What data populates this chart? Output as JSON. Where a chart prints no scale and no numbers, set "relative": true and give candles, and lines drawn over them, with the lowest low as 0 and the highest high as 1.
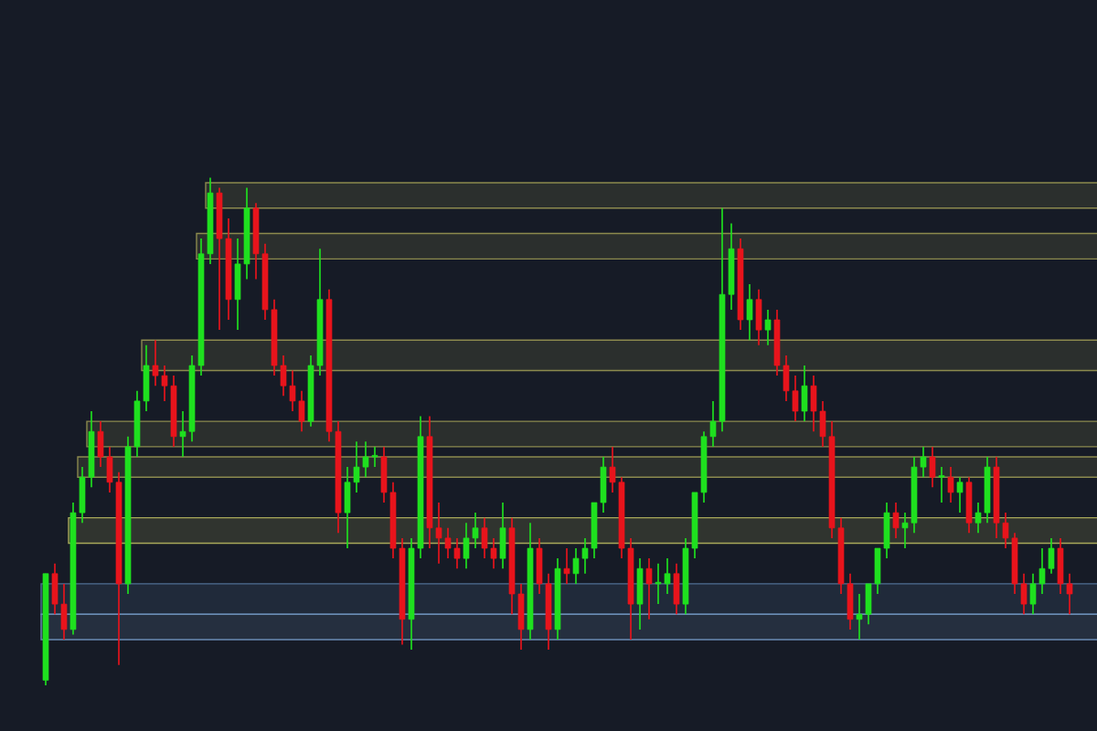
{
  "chart_data": {
    "type": "candlestick",
    "relative": true,
    "categories": [
      null,
      null,
      null,
      null,
      null,
      null,
      null,
      null,
      null,
      null,
      null,
      null,
      null,
      null,
      null,
      null,
      null,
      null,
      null,
      null,
      null,
      null,
      null,
      null,
      null,
      null,
      null,
      null,
      null,
      null,
      null,
      null,
      null,
      null,
      null,
      null,
      null,
      null,
      null,
      null,
      null,
      null,
      null,
      null,
      null,
      null,
      null,
      null,
      null,
      null,
      null,
      null,
      null,
      null,
      null,
      null,
      null,
      null,
      null,
      null,
      null,
      null,
      null,
      null,
      null,
      null,
      null,
      null,
      null,
      null,
      null,
      null,
      null,
      null,
      null,
      null,
      null,
      null,
      null,
      null,
      null,
      null,
      null,
      null,
      null,
      null,
      null,
      null,
      null,
      null,
      null,
      null,
      null,
      null,
      null,
      null,
      null,
      null,
      null,
      null,
      null,
      null,
      null,
      null,
      null,
      null,
      null,
      null,
      null,
      null,
      null,
      null,
      null
    ],
    "ohlc": [
      [
        0.01,
        0.22,
        0.0,
        0.22
      ],
      [
        0.22,
        0.24,
        0.14,
        0.16
      ],
      [
        0.16,
        0.2,
        0.09,
        0.11
      ],
      [
        0.11,
        0.36,
        0.1,
        0.34
      ],
      [
        0.34,
        0.43,
        0.32,
        0.41
      ],
      [
        0.41,
        0.54,
        0.39,
        0.5
      ],
      [
        0.5,
        0.52,
        0.43,
        0.45
      ],
      [
        0.45,
        0.47,
        0.38,
        0.4
      ],
      [
        0.4,
        0.42,
        0.04,
        0.2
      ],
      [
        0.2,
        0.49,
        0.18,
        0.47
      ],
      [
        0.47,
        0.58,
        0.45,
        0.56
      ],
      [
        0.56,
        0.67,
        0.54,
        0.63
      ],
      [
        0.63,
        0.68,
        0.59,
        0.61
      ],
      [
        0.61,
        0.63,
        0.56,
        0.59
      ],
      [
        0.59,
        0.61,
        0.47,
        0.49
      ],
      [
        0.49,
        0.54,
        0.45,
        0.5
      ],
      [
        0.5,
        0.65,
        0.48,
        0.63
      ],
      [
        0.63,
        0.88,
        0.61,
        0.85
      ],
      [
        0.85,
        1.0,
        0.83,
        0.97
      ],
      [
        0.97,
        0.98,
        0.7,
        0.88
      ],
      [
        0.88,
        0.92,
        0.72,
        0.76
      ],
      [
        0.76,
        0.88,
        0.7,
        0.83
      ],
      [
        0.83,
        0.98,
        0.8,
        0.94
      ],
      [
        0.94,
        0.95,
        0.8,
        0.85
      ],
      [
        0.85,
        0.87,
        0.72,
        0.74
      ],
      [
        0.74,
        0.76,
        0.61,
        0.63
      ],
      [
        0.63,
        0.65,
        0.57,
        0.59
      ],
      [
        0.59,
        0.62,
        0.54,
        0.56
      ],
      [
        0.56,
        0.58,
        0.5,
        0.52
      ],
      [
        0.52,
        0.65,
        0.51,
        0.63
      ],
      [
        0.63,
        0.86,
        0.61,
        0.76
      ],
      [
        0.76,
        0.78,
        0.48,
        0.5
      ],
      [
        0.5,
        0.52,
        0.3,
        0.34
      ],
      [
        0.34,
        0.43,
        0.27,
        0.4
      ],
      [
        0.4,
        0.48,
        0.38,
        0.43
      ],
      [
        0.43,
        0.48,
        0.41,
        0.45
      ],
      [
        0.45,
        0.47,
        0.43,
        0.45
      ],
      [
        0.45,
        0.47,
        0.36,
        0.38
      ],
      [
        0.38,
        0.4,
        0.25,
        0.27
      ],
      [
        0.27,
        0.29,
        0.08,
        0.13
      ],
      [
        0.13,
        0.29,
        0.07,
        0.27
      ],
      [
        0.27,
        0.53,
        0.25,
        0.49
      ],
      [
        0.49,
        0.53,
        0.27,
        0.31
      ],
      [
        0.31,
        0.36,
        0.24,
        0.29
      ],
      [
        0.29,
        0.31,
        0.25,
        0.27
      ],
      [
        0.27,
        0.29,
        0.23,
        0.25
      ],
      [
        0.25,
        0.32,
        0.23,
        0.29
      ],
      [
        0.29,
        0.34,
        0.27,
        0.31
      ],
      [
        0.31,
        0.33,
        0.25,
        0.27
      ],
      [
        0.27,
        0.29,
        0.23,
        0.25
      ],
      [
        0.25,
        0.36,
        0.23,
        0.31
      ],
      [
        0.31,
        0.33,
        0.14,
        0.18
      ],
      [
        0.18,
        0.2,
        0.07,
        0.11
      ],
      [
        0.11,
        0.32,
        0.09,
        0.27
      ],
      [
        0.27,
        0.29,
        0.18,
        0.2
      ],
      [
        0.2,
        0.22,
        0.07,
        0.11
      ],
      [
        0.11,
        0.25,
        0.09,
        0.23
      ],
      [
        0.23,
        0.27,
        0.2,
        0.22
      ],
      [
        0.22,
        0.27,
        0.2,
        0.25
      ],
      [
        0.25,
        0.29,
        0.22,
        0.27
      ],
      [
        0.27,
        0.36,
        0.25,
        0.36
      ],
      [
        0.36,
        0.45,
        0.34,
        0.43
      ],
      [
        0.43,
        0.47,
        0.38,
        0.4
      ],
      [
        0.4,
        0.41,
        0.25,
        0.27
      ],
      [
        0.27,
        0.29,
        0.09,
        0.16
      ],
      [
        0.16,
        0.25,
        0.11,
        0.23
      ],
      [
        0.23,
        0.25,
        0.13,
        0.2
      ],
      [
        0.2,
        0.24,
        0.16,
        0.2
      ],
      [
        0.2,
        0.25,
        0.18,
        0.22
      ],
      [
        0.22,
        0.24,
        0.14,
        0.16
      ],
      [
        0.16,
        0.29,
        0.14,
        0.27
      ],
      [
        0.27,
        0.38,
        0.25,
        0.38
      ],
      [
        0.38,
        0.5,
        0.36,
        0.49
      ],
      [
        0.49,
        0.56,
        0.47,
        0.52
      ],
      [
        0.52,
        0.94,
        0.5,
        0.77
      ],
      [
        0.77,
        0.91,
        0.74,
        0.86
      ],
      [
        0.86,
        0.88,
        0.7,
        0.72
      ],
      [
        0.72,
        0.79,
        0.68,
        0.76
      ],
      [
        0.76,
        0.78,
        0.67,
        0.7
      ],
      [
        0.7,
        0.74,
        0.67,
        0.72
      ],
      [
        0.72,
        0.74,
        0.61,
        0.63
      ],
      [
        0.63,
        0.65,
        0.56,
        0.58
      ],
      [
        0.58,
        0.61,
        0.52,
        0.54
      ],
      [
        0.54,
        0.63,
        0.52,
        0.59
      ],
      [
        0.59,
        0.61,
        0.5,
        0.54
      ],
      [
        0.54,
        0.56,
        0.47,
        0.49
      ],
      [
        0.49,
        0.52,
        0.29,
        0.31
      ],
      [
        0.31,
        0.33,
        0.18,
        0.2
      ],
      [
        0.2,
        0.22,
        0.11,
        0.13
      ],
      [
        0.13,
        0.18,
        0.09,
        0.14
      ],
      [
        0.14,
        0.2,
        0.12,
        0.2
      ],
      [
        0.2,
        0.27,
        0.18,
        0.27
      ],
      [
        0.27,
        0.36,
        0.25,
        0.34
      ],
      [
        0.34,
        0.36,
        0.29,
        0.31
      ],
      [
        0.31,
        0.34,
        0.27,
        0.32
      ],
      [
        0.32,
        0.45,
        0.3,
        0.43
      ],
      [
        0.43,
        0.47,
        0.41,
        0.45
      ],
      [
        0.45,
        0.47,
        0.39,
        0.41
      ],
      [
        0.41,
        0.43,
        0.36,
        0.41
      ],
      [
        0.41,
        0.43,
        0.36,
        0.38
      ],
      [
        0.38,
        0.41,
        0.34,
        0.4
      ],
      [
        0.4,
        0.41,
        0.3,
        0.32
      ],
      [
        0.32,
        0.36,
        0.3,
        0.34
      ],
      [
        0.34,
        0.45,
        0.32,
        0.43
      ],
      [
        0.43,
        0.45,
        0.29,
        0.32
      ],
      [
        0.32,
        0.34,
        0.27,
        0.29
      ],
      [
        0.29,
        0.3,
        0.18,
        0.2
      ],
      [
        0.2,
        0.22,
        0.14,
        0.16
      ],
      [
        0.16,
        0.22,
        0.14,
        0.2
      ],
      [
        0.2,
        0.27,
        0.18,
        0.23
      ],
      [
        0.23,
        0.29,
        0.22,
        0.27
      ],
      [
        0.27,
        0.29,
        0.18,
        0.2
      ],
      [
        0.2,
        0.22,
        0.14,
        0.18
      ]
    ],
    "bands": [
      {
        "axis": "y",
        "from": 0.94,
        "to": 0.99,
        "color": "#8c8a4e"
      },
      {
        "axis": "y",
        "from": 0.84,
        "to": 0.89,
        "color": "#8c8a4e"
      },
      {
        "axis": "y",
        "from": 0.62,
        "to": 0.68,
        "color": "#8c8a4e"
      },
      {
        "axis": "y",
        "from": 0.47,
        "to": 0.52,
        "color": "#8c8a4e"
      },
      {
        "axis": "y",
        "from": 0.41,
        "to": 0.45,
        "color": "#8c8a4e"
      },
      {
        "axis": "y",
        "from": 0.28,
        "to": 0.33,
        "color": "#a8a85a"
      },
      {
        "axis": "y",
        "from": 0.14,
        "to": 0.2,
        "color": "#4f6f94"
      },
      {
        "axis": "y",
        "from": 0.09,
        "to": 0.14,
        "color": "#6a8cb4"
      }
    ]
  }
}
